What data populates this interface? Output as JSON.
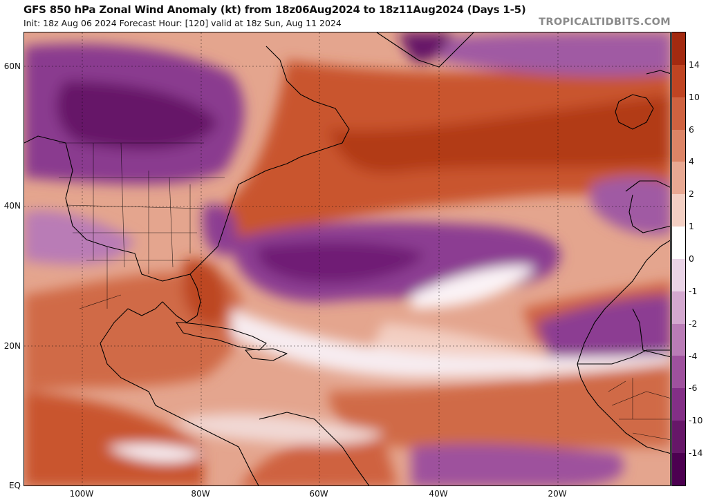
{
  "header": {
    "title": "GFS 850 hPa Zonal Wind Anomaly (kt) from 18z06Aug2024 to 18z11Aug2024 (Days 1-5)",
    "subtitle": "Init: 18z Aug 06 2024   Forecast Hour: [120]   valid at 18z Sun, Aug 11 2024",
    "brand": "TROPICALTIDBITS.COM"
  },
  "map": {
    "lat_labels": [
      "60N",
      "40N",
      "20N",
      "EQ"
    ],
    "lon_labels": [
      "100W",
      "80W",
      "60W",
      "40W",
      "20W"
    ]
  },
  "colorbar": {
    "unit": "kt",
    "labels": [
      "14",
      "10",
      "6",
      "4",
      "2",
      "1",
      "0",
      "-1",
      "-2",
      "-4",
      "-6",
      "-10",
      "-14"
    ],
    "colors": [
      "#a32a10",
      "#bf4422",
      "#cf6240",
      "#dc8466",
      "#e8a892",
      "#f3cfc3",
      "#ffffff",
      "#e9d3e6",
      "#d3a8cf",
      "#b97cb6",
      "#9e519d",
      "#832f86",
      "#661768",
      "#4c0050"
    ],
    "positive_color": "#c9552f",
    "negative_color": "#8c3c92"
  }
}
